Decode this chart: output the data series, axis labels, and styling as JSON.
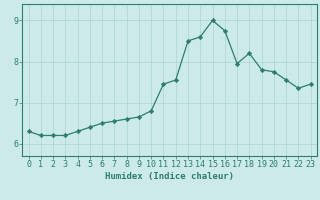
{
  "x": [
    0,
    1,
    2,
    3,
    4,
    5,
    6,
    7,
    8,
    9,
    10,
    11,
    12,
    13,
    14,
    15,
    16,
    17,
    18,
    19,
    20,
    21,
    22,
    23
  ],
  "y": [
    6.3,
    6.2,
    6.2,
    6.2,
    6.3,
    6.4,
    6.5,
    6.55,
    6.6,
    6.65,
    6.8,
    7.45,
    7.55,
    8.5,
    8.6,
    9.0,
    8.75,
    7.95,
    8.2,
    7.8,
    7.75,
    7.55,
    7.35,
    7.45
  ],
  "line_color": "#2e7d6e",
  "marker": "D",
  "marker_size": 2.2,
  "bg_color": "#cceaea",
  "grid_color": "#aad4d4",
  "xlabel": "Humidex (Indice chaleur)",
  "ylim": [
    5.7,
    9.4
  ],
  "xlim": [
    -0.5,
    23.5
  ],
  "yticks": [
    6,
    7,
    8,
    9
  ],
  "xticks": [
    0,
    1,
    2,
    3,
    4,
    5,
    6,
    7,
    8,
    9,
    10,
    11,
    12,
    13,
    14,
    15,
    16,
    17,
    18,
    19,
    20,
    21,
    22,
    23
  ],
  "label_fontsize": 6.5,
  "tick_fontsize": 6.0,
  "tick_color": "#2e7d6e",
  "spine_color": "#2e7d6e"
}
